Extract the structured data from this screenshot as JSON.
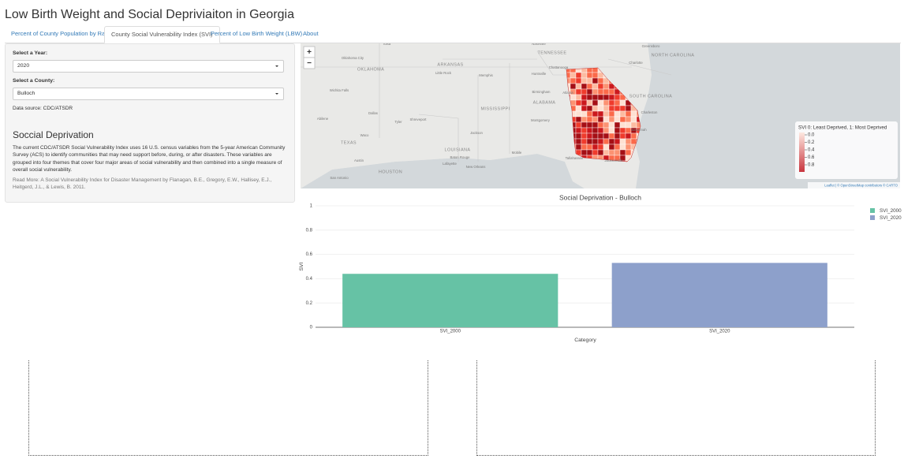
{
  "header": {
    "title": "Low Birth Weight and Social Depriviaiton in Georgia"
  },
  "tabs": [
    "Percent of County Population by Race",
    "County Social Vulnerability Index (SVI)",
    "Percent of Low Birth Weight (LBW)",
    "About"
  ],
  "sidebar": {
    "year_label": "Select a Year:",
    "year_value": "2020",
    "county_label": "Select a County:",
    "county_value": "Bulloch",
    "source": "Data source: CDC/ATSDR",
    "heading": "Soccial Deprivation",
    "paragraph": "The current CDC/ATSDR Social Vulnerability Index uses 16 U.S. census variables from the 5-year American Community Survey (ACS) to identify communities that may need support before, during, or after disasters. These variables are grouped into four themes that cover four major areas of social vulnerability and then combined into a single measure of overall social vulnerability.",
    "read_more": "Read More: A Social Vulnerability Index for Disaster Management by Flanagan, B.E., Gregory, E.W., Hallisey, E.J., Heitgerd, J.L., & Lewis, B. 2011."
  },
  "map": {
    "zoom_in": "+",
    "zoom_out": "−",
    "legend_title": "SVI 0: Least Deprived, 1: Most Deprived",
    "legend_ticks": [
      {
        "value": 0,
        "label": "0.0"
      },
      0.2,
      0.4,
      0.6,
      0.8
    ],
    "attribution": "Leaflet | © OpenStreetMap contributors © CARTO",
    "labels": [
      "TENNESSEE",
      "ARKANSAS",
      "OKLAHOMA",
      "MISSISSIPPI",
      "ALABAMA",
      "NORTH CAROLINA",
      "SOUTH CAROLINA",
      "LOUISIANA",
      "TEXAS",
      "HOUSTON",
      "Tulsa",
      "Nashville",
      "Oklahoma City",
      "Memphis",
      "Little Rock",
      "Huntsville",
      "Chattanooga",
      "Charlotte",
      "Greensboro",
      "Wichita Falls",
      "Dallas",
      "Abilene",
      "Tyler",
      "Shreveport",
      "Jackson",
      "Birmingham",
      "Montgomery",
      "Atlanta",
      "Charleston",
      "Savannah",
      "Tallahassee",
      "Jacksonville",
      "Baton Rouge",
      "New Orleans",
      "Lafayette",
      "Mobile",
      "San Antonio",
      "Austin",
      "Waco"
    ]
  },
  "chart_data": {
    "type": "bar",
    "title": "Social Deprivation - Bulloch",
    "x_label": "Category",
    "y_label": "SVI",
    "categories": [
      "SVI_2000",
      "SVI_2020"
    ],
    "series": [
      {
        "name": "SVI_2000",
        "color": "#66c2a5",
        "values": [
          0.44,
          null
        ]
      },
      {
        "name": "SVI_2020",
        "color": "#8da0cb",
        "values": [
          null,
          0.53
        ]
      }
    ],
    "ylim": [
      0,
      1
    ],
    "yticks": [
      0,
      0.2,
      0.4,
      0.6,
      0.8,
      1
    ],
    "grid": true
  }
}
